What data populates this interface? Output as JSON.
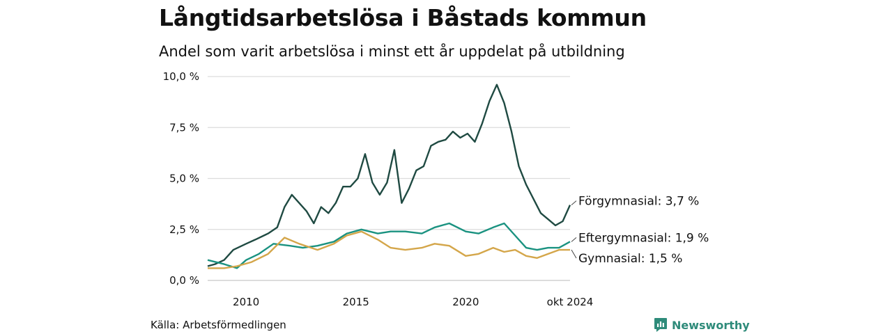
{
  "title": "Långtidsarbetslösa i Båstads kommun",
  "subtitle": "Andel som varit arbetslösa i minst ett år uppdelat på utbildning",
  "source": "Källa: Arbetsförmedlingen",
  "brand": {
    "name": "Newsworthy",
    "icon": "newsworthy-logo-icon",
    "color": "#2e8b7a"
  },
  "chart_data": {
    "type": "line",
    "title": "Långtidsarbetslösa i Båstads kommun",
    "subtitle": "Andel som varit arbetslösa i minst ett år uppdelat på utbildning",
    "x_range": [
      "2008-04",
      "2024-10"
    ],
    "ylim": [
      0,
      10
    ],
    "grid": true,
    "y_ticks": [
      {
        "value": 0,
        "label": "0,0 %"
      },
      {
        "value": 2.5,
        "label": "2,5 %"
      },
      {
        "value": 5,
        "label": "5,0 %"
      },
      {
        "value": 7.5,
        "label": "7,5 %"
      },
      {
        "value": 10,
        "label": "10,0 %"
      }
    ],
    "x_ticks": [
      {
        "value": "2010-01",
        "label": "2010"
      },
      {
        "value": "2015-01",
        "label": "2015"
      },
      {
        "value": "2020-01",
        "label": "2020"
      },
      {
        "value": "2024-10",
        "label": "okt 2024"
      }
    ],
    "series": [
      {
        "name": "Förgymnasial",
        "end_label": "Förgymnasial: 3,7 %",
        "color": "#1f4a42",
        "points": [
          [
            "2008-04",
            0.7
          ],
          [
            "2008-08",
            0.8
          ],
          [
            "2009-01",
            1.0
          ],
          [
            "2009-06",
            1.5
          ],
          [
            "2010-01",
            1.8
          ],
          [
            "2010-06",
            2.0
          ],
          [
            "2011-01",
            2.3
          ],
          [
            "2011-06",
            2.6
          ],
          [
            "2011-10",
            3.6
          ],
          [
            "2012-02",
            4.2
          ],
          [
            "2012-06",
            3.8
          ],
          [
            "2012-10",
            3.4
          ],
          [
            "2013-02",
            2.8
          ],
          [
            "2013-06",
            3.6
          ],
          [
            "2013-10",
            3.3
          ],
          [
            "2014-02",
            3.8
          ],
          [
            "2014-06",
            4.6
          ],
          [
            "2014-10",
            4.6
          ],
          [
            "2015-02",
            5.0
          ],
          [
            "2015-06",
            6.2
          ],
          [
            "2015-10",
            4.8
          ],
          [
            "2016-02",
            4.2
          ],
          [
            "2016-06",
            4.8
          ],
          [
            "2016-10",
            6.4
          ],
          [
            "2017-02",
            3.8
          ],
          [
            "2017-06",
            4.5
          ],
          [
            "2017-10",
            5.4
          ],
          [
            "2018-02",
            5.6
          ],
          [
            "2018-06",
            6.6
          ],
          [
            "2018-10",
            6.8
          ],
          [
            "2019-02",
            6.9
          ],
          [
            "2019-06",
            7.3
          ],
          [
            "2019-10",
            7.0
          ],
          [
            "2020-02",
            7.2
          ],
          [
            "2020-06",
            6.8
          ],
          [
            "2020-10",
            7.7
          ],
          [
            "2021-02",
            8.8
          ],
          [
            "2021-06",
            9.6
          ],
          [
            "2021-10",
            8.7
          ],
          [
            "2022-02",
            7.3
          ],
          [
            "2022-06",
            5.6
          ],
          [
            "2022-10",
            4.7
          ],
          [
            "2023-02",
            4.0
          ],
          [
            "2023-06",
            3.3
          ],
          [
            "2023-10",
            3.0
          ],
          [
            "2024-02",
            2.7
          ],
          [
            "2024-06",
            2.9
          ],
          [
            "2024-10",
            3.7
          ]
        ]
      },
      {
        "name": "Eftergymnasial",
        "end_label": "Eftergymnasial: 1,9 %",
        "color": "#1a9280",
        "points": [
          [
            "2008-04",
            1.0
          ],
          [
            "2009-01",
            0.8
          ],
          [
            "2009-08",
            0.6
          ],
          [
            "2010-01",
            1.0
          ],
          [
            "2010-08",
            1.3
          ],
          [
            "2011-04",
            1.8
          ],
          [
            "2012-01",
            1.7
          ],
          [
            "2012-08",
            1.6
          ],
          [
            "2013-04",
            1.7
          ],
          [
            "2014-01",
            1.9
          ],
          [
            "2014-08",
            2.3
          ],
          [
            "2015-04",
            2.5
          ],
          [
            "2016-01",
            2.3
          ],
          [
            "2016-08",
            2.4
          ],
          [
            "2017-04",
            2.4
          ],
          [
            "2018-01",
            2.3
          ],
          [
            "2018-08",
            2.6
          ],
          [
            "2019-04",
            2.8
          ],
          [
            "2020-01",
            2.4
          ],
          [
            "2020-08",
            2.3
          ],
          [
            "2021-04",
            2.6
          ],
          [
            "2021-10",
            2.8
          ],
          [
            "2022-04",
            2.2
          ],
          [
            "2022-10",
            1.6
          ],
          [
            "2023-04",
            1.5
          ],
          [
            "2023-10",
            1.6
          ],
          [
            "2024-04",
            1.6
          ],
          [
            "2024-10",
            1.9
          ]
        ]
      },
      {
        "name": "Gymnasial",
        "end_label": "Gymnasial: 1,5 %",
        "color": "#d4a64a",
        "points": [
          [
            "2008-04",
            0.6
          ],
          [
            "2009-01",
            0.6
          ],
          [
            "2009-08",
            0.7
          ],
          [
            "2010-04",
            0.9
          ],
          [
            "2011-01",
            1.3
          ],
          [
            "2011-10",
            2.1
          ],
          [
            "2012-06",
            1.8
          ],
          [
            "2013-04",
            1.5
          ],
          [
            "2014-01",
            1.8
          ],
          [
            "2014-08",
            2.2
          ],
          [
            "2015-04",
            2.4
          ],
          [
            "2016-01",
            2.0
          ],
          [
            "2016-08",
            1.6
          ],
          [
            "2017-04",
            1.5
          ],
          [
            "2018-01",
            1.6
          ],
          [
            "2018-08",
            1.8
          ],
          [
            "2019-04",
            1.7
          ],
          [
            "2020-01",
            1.2
          ],
          [
            "2020-08",
            1.3
          ],
          [
            "2021-04",
            1.6
          ],
          [
            "2021-10",
            1.4
          ],
          [
            "2022-04",
            1.5
          ],
          [
            "2022-10",
            1.2
          ],
          [
            "2023-04",
            1.1
          ],
          [
            "2023-10",
            1.3
          ],
          [
            "2024-04",
            1.5
          ],
          [
            "2024-10",
            1.5
          ]
        ]
      }
    ]
  }
}
